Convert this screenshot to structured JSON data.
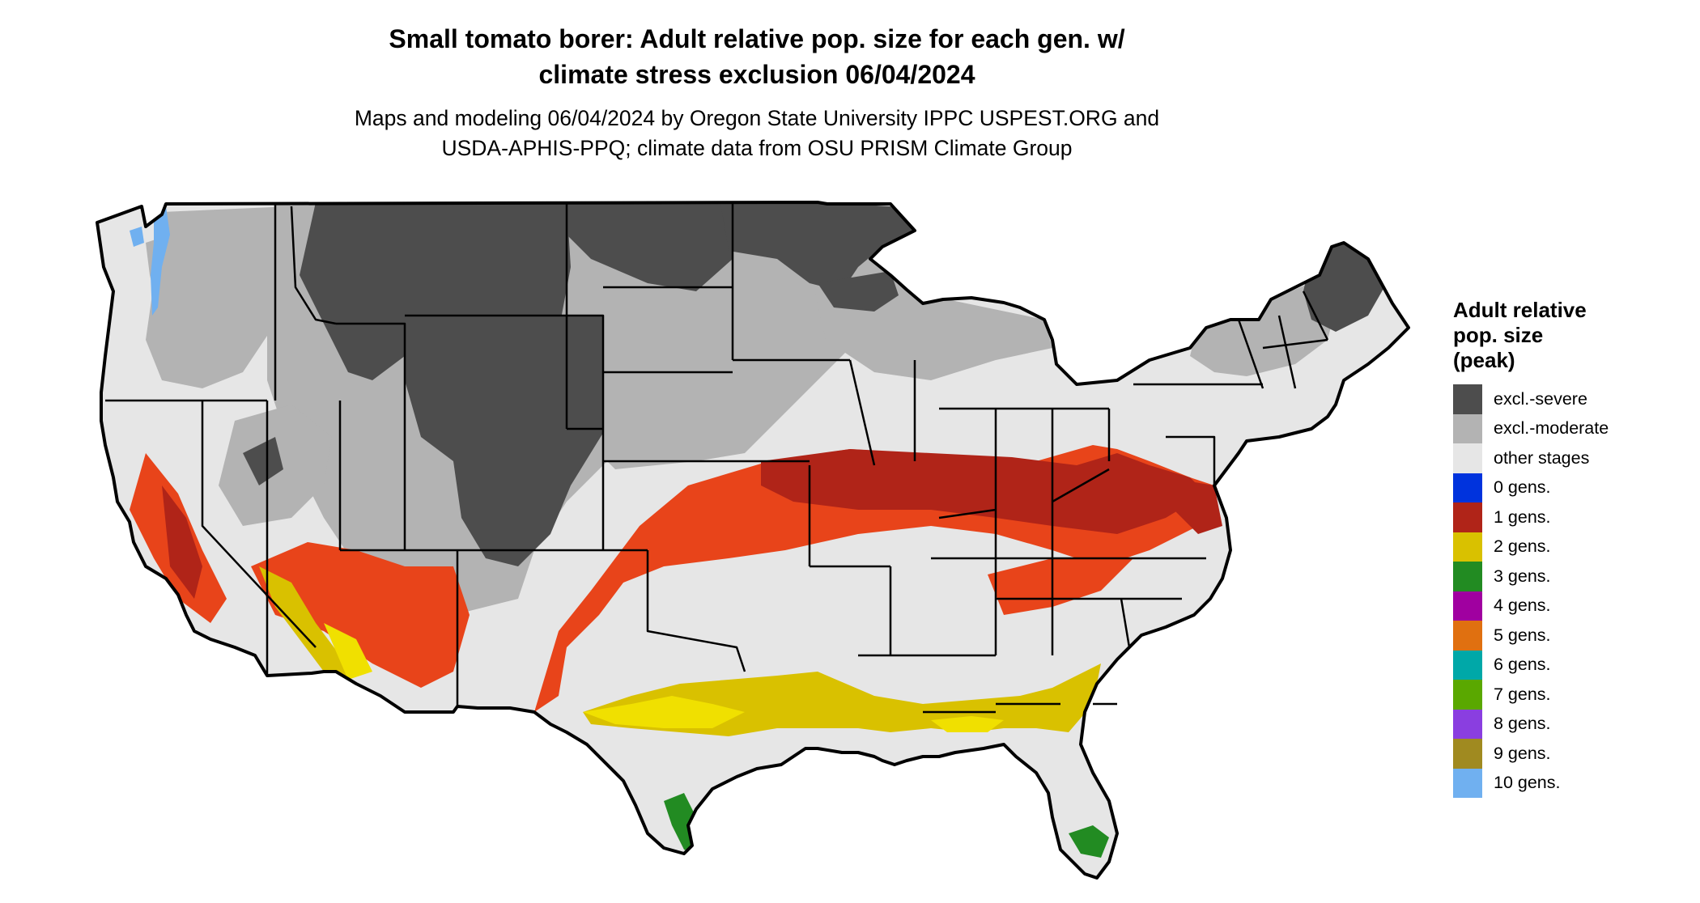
{
  "title": {
    "line1": "Small tomato borer: Adult relative pop. size for each gen. w/",
    "line2": "climate stress exclusion 06/04/2024"
  },
  "subtitle": {
    "line1": "Maps and modeling 06/04/2024 by Oregon State University IPPC USPEST.ORG and",
    "line2": "USDA-APHIS-PPQ; climate data from OSU PRISM Climate Group"
  },
  "legend": {
    "title_lines": [
      "Adult relative",
      "pop. size",
      "(peak)"
    ],
    "items": [
      {
        "label": "excl.-severe",
        "color": "#4d4d4d"
      },
      {
        "label": "excl.-moderate",
        "color": "#b3b3b3"
      },
      {
        "label": "other stages",
        "color": "#e6e6e6"
      },
      {
        "label": "0 gens.",
        "color": "#0033dd"
      },
      {
        "label": "1 gens.",
        "color": "#b02418"
      },
      {
        "label": "2 gens.",
        "color": "#d9c100"
      },
      {
        "label": "3 gens.",
        "color": "#228b22"
      },
      {
        "label": "4 gens.",
        "color": "#a000a0"
      },
      {
        "label": "5 gens.",
        "color": "#e07010"
      },
      {
        "label": "6 gens.",
        "color": "#00a8a8"
      },
      {
        "label": "7 gens.",
        "color": "#5aa800"
      },
      {
        "label": "8 gens.",
        "color": "#8a3ee0"
      },
      {
        "label": "9 gens.",
        "color": "#a08a20"
      },
      {
        "label": "10 gens.",
        "color": "#70b0f0"
      }
    ]
  },
  "map_colors": {
    "severe": "#4d4d4d",
    "moderate": "#b3b3b3",
    "other": "#e6e6e6",
    "one_gen_dark": "#b02418",
    "one_gen_light": "#e8441a",
    "two_gen": "#d9c100",
    "two_gen_light": "#f0e000",
    "three_gen": "#228b22",
    "ten_gen": "#70b0f0",
    "border": "#000000"
  }
}
